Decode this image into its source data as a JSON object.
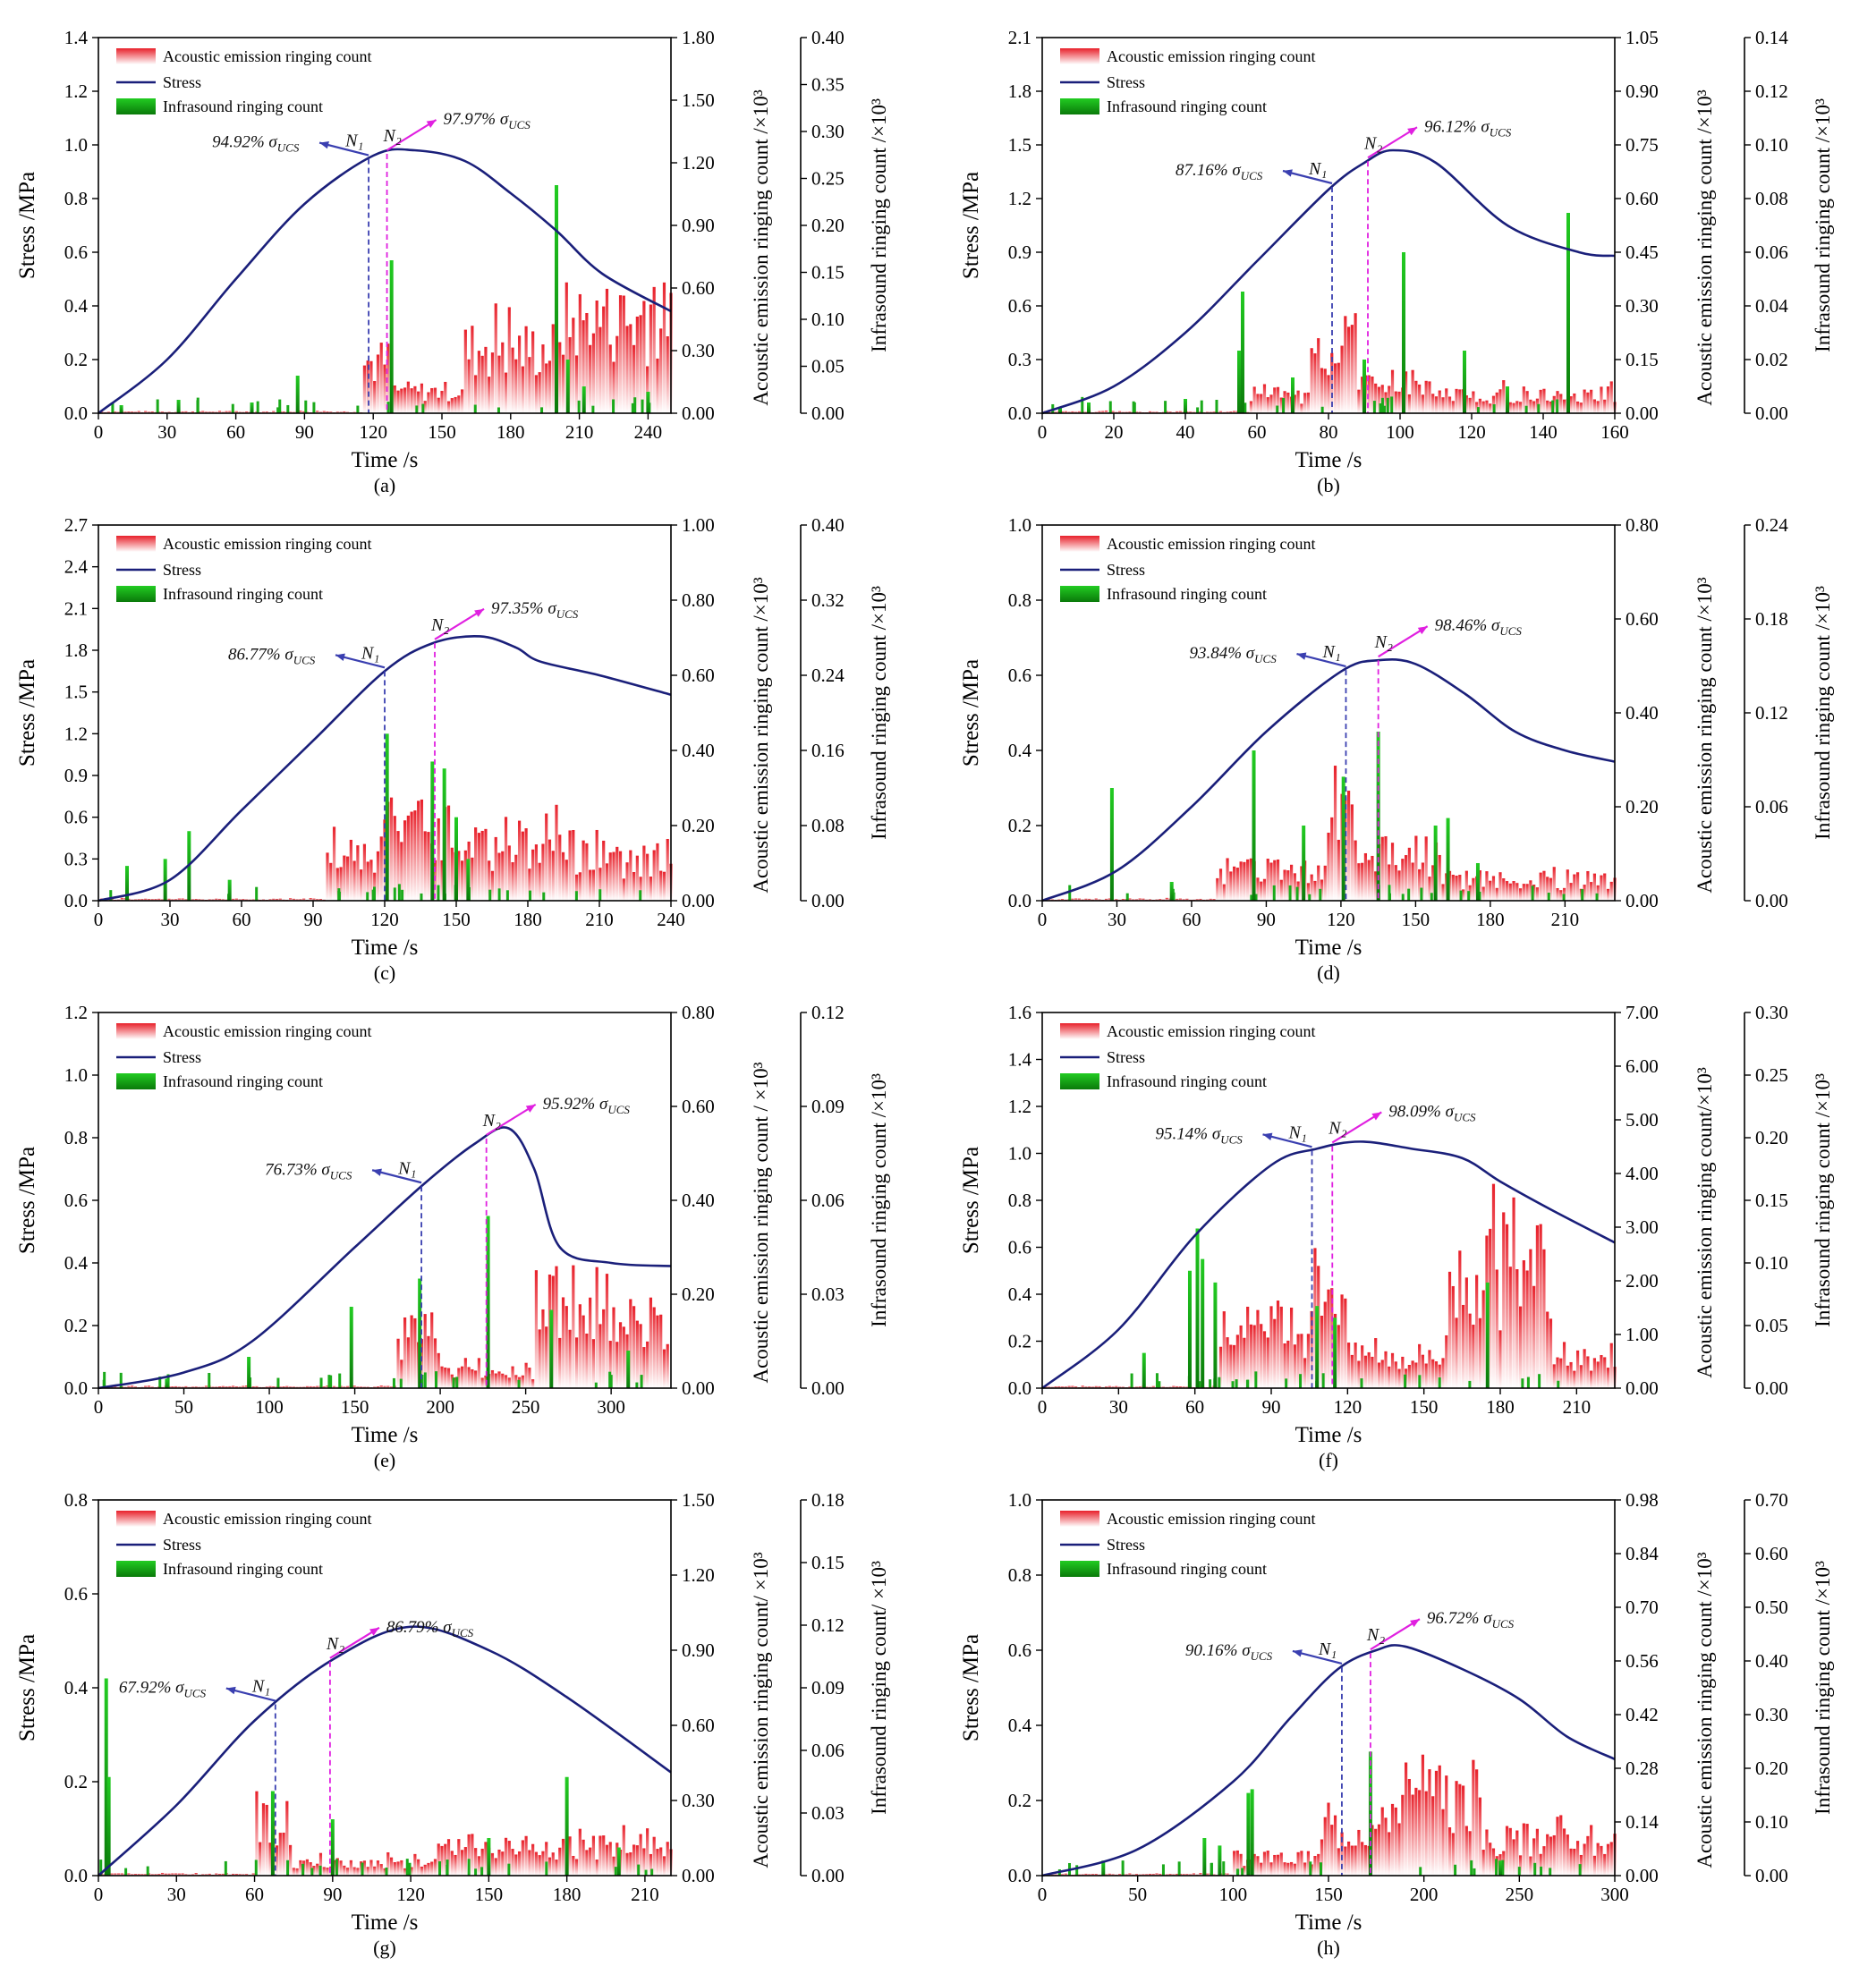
{
  "figure": {
    "legend": {
      "ae": "Acoustic emission ringing count",
      "stress": "Stress",
      "infra": "Infrasound ringing count"
    },
    "xlabel": "Time /s",
    "ylabel": "Stress /MPa",
    "colors": {
      "stress": "#1a1f7a",
      "ae": "#e8202a",
      "infra": "#1aaa1a",
      "n1": "#3a3fb0",
      "n2": "#e020e0"
    }
  },
  "chart_data": [
    {
      "id": "a",
      "type": "line",
      "caption": "(a)",
      "xlim": [
        0,
        250
      ],
      "xticks": [
        "0",
        "30",
        "60",
        "90",
        "120",
        "150",
        "180",
        "210",
        "240"
      ],
      "ylim": [
        0,
        1.4
      ],
      "yticks": [
        "0.0",
        "0.2",
        "0.4",
        "0.6",
        "0.8",
        "1.0",
        "1.2",
        "1.4"
      ],
      "ae_label": "Acoustic emission ringing count  /×10³",
      "ae_ticks": [
        "0.00",
        "0.30",
        "0.60",
        "0.90",
        "1.20",
        "1.50",
        "1.80"
      ],
      "infra_label": "Infrasound ringing count /×10³",
      "infra_ticks": [
        "0.00",
        "0.05",
        "0.10",
        "0.15",
        "0.20",
        "0.25",
        "0.30",
        "0.35",
        "0.40"
      ],
      "stress": {
        "x": [
          0,
          30,
          60,
          90,
          120,
          138,
          160,
          180,
          200,
          220,
          250
        ],
        "y": [
          0,
          0.2,
          0.5,
          0.78,
          0.96,
          0.98,
          0.94,
          0.82,
          0.68,
          0.52,
          0.38
        ]
      },
      "ae_bursts": [
        [
          115,
          127,
          0.28
        ],
        [
          127,
          160,
          0.12
        ],
        [
          160,
          200,
          0.35
        ],
        [
          200,
          250,
          0.5
        ]
      ],
      "infra_spikes": [
        [
          10,
          0.03
        ],
        [
          35,
          0.05
        ],
        [
          67,
          0.04
        ],
        [
          87,
          0.14
        ],
        [
          128,
          0.57
        ],
        [
          200,
          0.85
        ],
        [
          205,
          0.2
        ],
        [
          212,
          0.1
        ],
        [
          240,
          0.08
        ]
      ],
      "n1": {
        "label": "N₁",
        "x": 118,
        "pct": "94.92%"
      },
      "n2": {
        "label": "N₂",
        "x": 126,
        "pct": "97.97%"
      }
    },
    {
      "id": "b",
      "type": "line",
      "caption": "(b)",
      "xlim": [
        0,
        160
      ],
      "xticks": [
        "0",
        "20",
        "40",
        "60",
        "80",
        "100",
        "120",
        "140",
        "160"
      ],
      "ylim": [
        0,
        2.1
      ],
      "yticks": [
        "0.0",
        "0.3",
        "0.6",
        "0.9",
        "1.2",
        "1.5",
        "1.8",
        "2.1"
      ],
      "ae_label": "Acoustic emission ringing count  /×10³",
      "ae_ticks": [
        "0.00",
        "0.15",
        "0.30",
        "0.45",
        "0.60",
        "0.75",
        "0.90",
        "1.05"
      ],
      "infra_label": "Infrasound ringing count  /×10³",
      "infra_ticks": [
        "0.00",
        "0.02",
        "0.04",
        "0.06",
        "0.08",
        "0.10",
        "0.12",
        "0.14"
      ],
      "stress": {
        "x": [
          0,
          20,
          40,
          60,
          80,
          90,
          98,
          110,
          130,
          150,
          160
        ],
        "y": [
          0,
          0.15,
          0.45,
          0.85,
          1.25,
          1.4,
          1.47,
          1.4,
          1.05,
          0.9,
          0.88
        ]
      },
      "ae_bursts": [
        [
          58,
          75,
          0.15
        ],
        [
          75,
          88,
          0.55
        ],
        [
          88,
          110,
          0.25
        ],
        [
          110,
          160,
          0.15
        ]
      ],
      "infra_spikes": [
        [
          5,
          0.03
        ],
        [
          13,
          0.06
        ],
        [
          40,
          0.08
        ],
        [
          55,
          0.35
        ],
        [
          56,
          0.68
        ],
        [
          70,
          0.2
        ],
        [
          90,
          0.3
        ],
        [
          101,
          0.9
        ],
        [
          118,
          0.35
        ],
        [
          147,
          1.12
        ],
        [
          130,
          0.15
        ]
      ],
      "n1": {
        "label": "N₁",
        "x": 81,
        "pct": "87.16%"
      },
      "n2": {
        "label": "N₂",
        "x": 91,
        "pct": "96.12%"
      }
    },
    {
      "id": "c",
      "type": "line",
      "caption": "(c)",
      "xlim": [
        0,
        240
      ],
      "xticks": [
        "0",
        "30",
        "60",
        "90",
        "120",
        "150",
        "180",
        "210",
        "240"
      ],
      "ylim": [
        0,
        2.7
      ],
      "yticks": [
        "0.0",
        "0.3",
        "0.6",
        "0.9",
        "1.2",
        "1.5",
        "1.8",
        "2.1",
        "2.4",
        "2.7"
      ],
      "ae_label": "Acoustic emission ringing count  /×10³",
      "ae_ticks": [
        "0.00",
        "0.20",
        "0.40",
        "0.60",
        "0.80",
        "1.00"
      ],
      "infra_label": "Infrasound ringing count  /×10³",
      "infra_ticks": [
        "0.00",
        "0.08",
        "0.16",
        "0.24",
        "0.32",
        "0.40"
      ],
      "stress": {
        "x": [
          0,
          30,
          60,
          90,
          120,
          140,
          160,
          175,
          185,
          210,
          240
        ],
        "y": [
          0,
          0.15,
          0.65,
          1.15,
          1.65,
          1.85,
          1.9,
          1.82,
          1.72,
          1.62,
          1.48
        ]
      },
      "ae_bursts": [
        [
          95,
          118,
          0.45
        ],
        [
          118,
          150,
          0.75
        ],
        [
          150,
          200,
          0.6
        ],
        [
          200,
          240,
          0.45
        ]
      ],
      "infra_spikes": [
        [
          12,
          0.25
        ],
        [
          28,
          0.3
        ],
        [
          38,
          0.5
        ],
        [
          55,
          0.15
        ],
        [
          121,
          1.2
        ],
        [
          140,
          1.0
        ],
        [
          145,
          0.95
        ],
        [
          150,
          0.6
        ],
        [
          155,
          0.3
        ]
      ],
      "n1": {
        "label": "N₁",
        "x": 120,
        "pct": "86.77%"
      },
      "n2": {
        "label": "N₂",
        "x": 141,
        "pct": "97.35%"
      }
    },
    {
      "id": "d",
      "type": "line",
      "caption": "(d)",
      "xlim": [
        0,
        230
      ],
      "xticks": [
        "0",
        "30",
        "60",
        "90",
        "120",
        "150",
        "180",
        "210"
      ],
      "ylim": [
        0,
        1.0
      ],
      "yticks": [
        "0.0",
        "0.2",
        "0.4",
        "0.6",
        "0.8",
        "1.0"
      ],
      "ae_label": "Acoustic emission ringing count  /×10³",
      "ae_ticks": [
        "0.00",
        "0.20",
        "0.40",
        "0.60",
        "0.80"
      ],
      "infra_label": "Infrasound  ringing count  /×10³",
      "infra_ticks": [
        "0.00",
        "0.06",
        "0.12",
        "0.18",
        "0.24"
      ],
      "stress": {
        "x": [
          0,
          30,
          60,
          90,
          120,
          135,
          150,
          170,
          190,
          210,
          230
        ],
        "y": [
          0,
          0.08,
          0.25,
          0.45,
          0.61,
          0.64,
          0.63,
          0.55,
          0.45,
          0.4,
          0.37
        ]
      },
      "ae_bursts": [
        [
          70,
          115,
          0.12
        ],
        [
          115,
          125,
          0.35
        ],
        [
          125,
          160,
          0.18
        ],
        [
          160,
          230,
          0.08
        ]
      ],
      "infra_spikes": [
        [
          28,
          0.3
        ],
        [
          52,
          0.05
        ],
        [
          85,
          0.4
        ],
        [
          105,
          0.2
        ],
        [
          121,
          0.33
        ],
        [
          135,
          0.45
        ],
        [
          158,
          0.2
        ],
        [
          163,
          0.22
        ],
        [
          175,
          0.1
        ]
      ],
      "n1": {
        "label": "N₁",
        "x": 122,
        "pct": "93.84%"
      },
      "n2": {
        "label": "N₂",
        "x": 135,
        "pct": "98.46%"
      }
    },
    {
      "id": "e",
      "type": "line",
      "caption": "(e)",
      "xlim": [
        0,
        335
      ],
      "xticks": [
        "0",
        "50",
        "100",
        "150",
        "200",
        "250",
        "300"
      ],
      "ylim": [
        0,
        1.2
      ],
      "yticks": [
        "0.0",
        "0.2",
        "0.4",
        "0.6",
        "0.8",
        "1.0",
        "1.2"
      ],
      "ae_label": "Acoustic emission ringing count / ×10³",
      "ae_ticks": [
        "0.00",
        "0.20",
        "0.40",
        "0.60",
        "0.80"
      ],
      "infra_label": "Infrasound ringing count  /×10³",
      "infra_ticks": [
        "0.00",
        "0.03",
        "0.06",
        "0.09",
        "0.12"
      ],
      "stress": {
        "x": [
          0,
          50,
          90,
          150,
          190,
          220,
          240,
          255,
          270,
          300,
          335
        ],
        "y": [
          0,
          0.05,
          0.15,
          0.45,
          0.65,
          0.78,
          0.83,
          0.7,
          0.45,
          0.4,
          0.39
        ]
      },
      "ae_bursts": [
        [
          175,
          200,
          0.25
        ],
        [
          200,
          255,
          0.08
        ],
        [
          255,
          300,
          0.4
        ],
        [
          300,
          335,
          0.3
        ]
      ],
      "infra_spikes": [
        [
          40,
          0.03
        ],
        [
          88,
          0.1
        ],
        [
          148,
          0.26
        ],
        [
          188,
          0.35
        ],
        [
          228,
          0.55
        ],
        [
          265,
          0.25
        ],
        [
          310,
          0.12
        ]
      ],
      "n1": {
        "label": "N₁",
        "x": 189,
        "pct": "76.73%"
      },
      "n2": {
        "label": "N₂",
        "x": 227,
        "pct": "95.92%"
      }
    },
    {
      "id": "f",
      "type": "line",
      "caption": "(f)",
      "xlim": [
        0,
        225
      ],
      "xticks": [
        "0",
        "30",
        "60",
        "90",
        "120",
        "150",
        "180",
        "210"
      ],
      "ylim": [
        0,
        1.6
      ],
      "yticks": [
        "0.0",
        "0.2",
        "0.4",
        "0.6",
        "0.8",
        "1.0",
        "1.2",
        "1.4",
        "1.6"
      ],
      "ae_label": "Acoustic emission ringing count/×10³",
      "ae_ticks": [
        "0.00",
        "1.00",
        "2.00",
        "3.00",
        "4.00",
        "5.00",
        "6.00",
        "7.00"
      ],
      "infra_label": "Infrasound  ringing count  /×10³",
      "infra_ticks": [
        "0.00",
        "0.05",
        "0.10",
        "0.15",
        "0.20",
        "0.25",
        "0.30"
      ],
      "stress": {
        "x": [
          0,
          30,
          60,
          90,
          108,
          125,
          145,
          165,
          180,
          200,
          225
        ],
        "y": [
          0,
          0.25,
          0.65,
          0.95,
          1.02,
          1.05,
          1.02,
          0.98,
          0.88,
          0.76,
          0.62
        ]
      },
      "ae_bursts": [
        [
          70,
          105,
          0.35
        ],
        [
          105,
          120,
          0.65
        ],
        [
          120,
          160,
          0.2
        ],
        [
          160,
          200,
          0.7
        ],
        [
          200,
          225,
          0.2
        ]
      ],
      "infra_spikes": [
        [
          40,
          0.15
        ],
        [
          58,
          0.5
        ],
        [
          61,
          0.68
        ],
        [
          63,
          0.55
        ],
        [
          68,
          0.45
        ],
        [
          108,
          0.35
        ],
        [
          115,
          0.3
        ],
        [
          175,
          0.45
        ]
      ],
      "n1": {
        "label": "N₁",
        "x": 106,
        "pct": "95.14%"
      },
      "n2": {
        "label": "N₂",
        "x": 114,
        "pct": "98.09%"
      }
    },
    {
      "id": "g",
      "type": "line",
      "caption": "(g)",
      "xlim": [
        0,
        220
      ],
      "xticks": [
        "0",
        "30",
        "60",
        "90",
        "120",
        "150",
        "180",
        "210"
      ],
      "ylim": [
        0,
        0.8
      ],
      "yticks": [
        "0.0",
        "0.2",
        "0.4",
        "0.6",
        "0.8"
      ],
      "ae_label": "Acoustic emission ringing count/ ×10³",
      "ae_ticks": [
        "0.00",
        "0.30",
        "0.60",
        "0.90",
        "1.20",
        "1.50"
      ],
      "infra_label": "Infrasound ringing count/ ×10³",
      "infra_ticks": [
        "0.00",
        "0.03",
        "0.06",
        "0.09",
        "0.12",
        "0.15",
        "0.18"
      ],
      "stress": {
        "x": [
          0,
          30,
          60,
          90,
          120,
          150,
          180,
          220
        ],
        "y": [
          0,
          0.15,
          0.33,
          0.46,
          0.53,
          0.48,
          0.38,
          0.22
        ]
      },
      "ae_bursts": [
        [
          60,
          75,
          0.16
        ],
        [
          75,
          130,
          0.04
        ],
        [
          130,
          220,
          0.09
        ]
      ],
      "infra_spikes": [
        [
          3,
          0.42
        ],
        [
          4,
          0.21
        ],
        [
          67,
          0.18
        ],
        [
          90,
          0.12
        ],
        [
          150,
          0.08
        ],
        [
          180,
          0.21
        ],
        [
          200,
          0.06
        ]
      ],
      "n1": {
        "label": "N₁",
        "x": 68,
        "pct": "67.92%"
      },
      "n2": {
        "label": "N₂",
        "x": 89,
        "pct": "86.79%"
      }
    },
    {
      "id": "h",
      "type": "line",
      "caption": "(h)",
      "xlim": [
        0,
        300
      ],
      "xticks": [
        "0",
        "50",
        "100",
        "150",
        "200",
        "250",
        "300"
      ],
      "ylim": [
        0,
        1.0
      ],
      "yticks": [
        "0.0",
        "0.2",
        "0.4",
        "0.6",
        "0.8",
        "1.0"
      ],
      "ae_label": "Acoustic emission ringing count  /×10³",
      "ae_ticks": [
        "0.00",
        "0.14",
        "0.28",
        "0.42",
        "0.56",
        "0.70",
        "0.84",
        "0.98"
      ],
      "infra_label": "Infrasound ringing count /×10³",
      "infra_ticks": [
        "0.00",
        "0.10",
        "0.20",
        "0.30",
        "0.40",
        "0.50",
        "0.60",
        "0.70"
      ],
      "stress": {
        "x": [
          0,
          50,
          100,
          130,
          155,
          175,
          190,
          220,
          250,
          275,
          300
        ],
        "y": [
          0,
          0.07,
          0.25,
          0.42,
          0.55,
          0.6,
          0.61,
          0.55,
          0.47,
          0.37,
          0.31
        ]
      },
      "ae_bursts": [
        [
          100,
          145,
          0.07
        ],
        [
          145,
          180,
          0.2
        ],
        [
          180,
          230,
          0.3
        ],
        [
          230,
          300,
          0.14
        ]
      ],
      "infra_spikes": [
        [
          32,
          0.04
        ],
        [
          85,
          0.1
        ],
        [
          93,
          0.08
        ],
        [
          108,
          0.22
        ],
        [
          110,
          0.23
        ],
        [
          172,
          0.33
        ],
        [
          240,
          0.04
        ]
      ],
      "n1": {
        "label": "N₁",
        "x": 157,
        "pct": "90.16%"
      },
      "n2": {
        "label": "N₂",
        "x": 172,
        "pct": "96.72%"
      }
    }
  ]
}
